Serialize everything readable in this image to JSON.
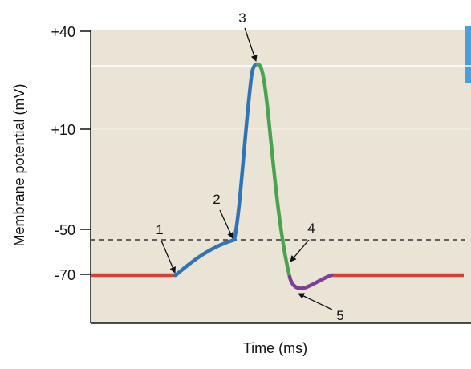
{
  "colors": {
    "background": "#e9e4d6",
    "resting": "#d8403a",
    "depolarization": "#2f74b5",
    "repolarization": "#4aa34f",
    "hyperpolarization": "#7e3f98",
    "threshold": "#333333",
    "side_bar": "#4a9fd8"
  },
  "axes": {
    "ylabel": "Membrane potential (mV)",
    "xlabel": "Time (ms)",
    "yticks": [
      {
        "value": 40,
        "label": "+40"
      },
      {
        "value": 10,
        "label": "+10"
      },
      {
        "value": -50,
        "label": "-50"
      },
      {
        "value": -70,
        "label": "-70"
      }
    ]
  },
  "callouts": [
    {
      "id": "1",
      "label": "1"
    },
    {
      "id": "2",
      "label": "2"
    },
    {
      "id": "3",
      "label": "3"
    },
    {
      "id": "4",
      "label": "4"
    },
    {
      "id": "5",
      "label": "5"
    }
  ]
}
